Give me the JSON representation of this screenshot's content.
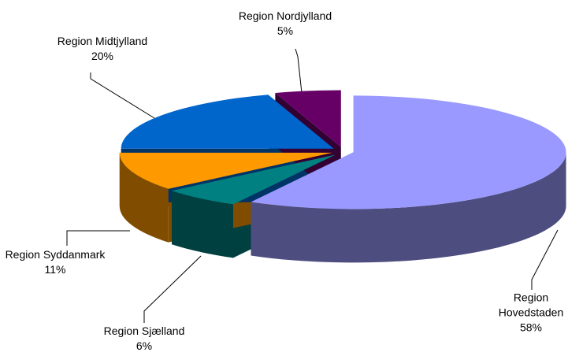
{
  "chart_data": {
    "type": "pie",
    "categories": [
      "Region Hovedstaden",
      "Region Sjælland",
      "Region Syddanmark",
      "Region Midtjylland",
      "Region Nordjylland"
    ],
    "values": [
      58,
      6,
      11,
      20,
      5
    ],
    "value_labels": [
      "58%",
      "6%",
      "11%",
      "20%",
      "5%"
    ],
    "colors": [
      "#9999ff",
      "#008080",
      "#ff9900",
      "#0066cc",
      "#660066"
    ]
  }
}
